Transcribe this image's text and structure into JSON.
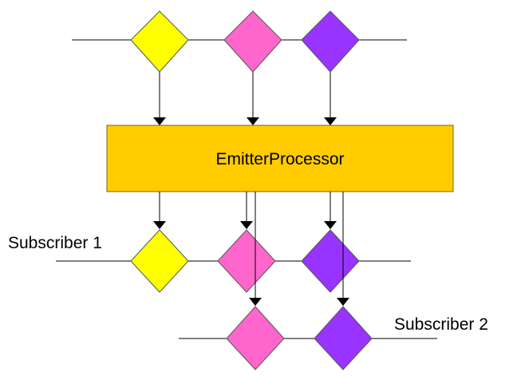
{
  "processor": {
    "label": "EmitterProcessor",
    "fill": "#ffcc00",
    "border": "#7f6600"
  },
  "subscribers": {
    "first": "Subscriber 1",
    "second": "Subscriber 2"
  },
  "colors": {
    "yellow": "#ffff00",
    "pink": "#ff66cc",
    "purple": "#9933ff",
    "line": "#000000"
  }
}
